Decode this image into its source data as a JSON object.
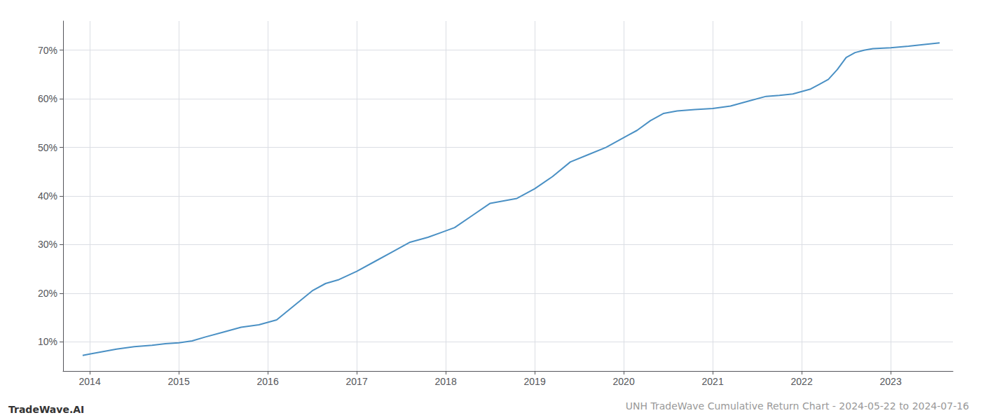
{
  "chart_data": {
    "type": "line",
    "title": "UNH TradeWave Cumulative Return Chart - 2024-05-22 to 2024-07-16",
    "annotations": [
      "TradeWave.AI"
    ],
    "color": "#4a90c4",
    "grid": true,
    "x": [
      2013.92,
      2014.0,
      2014.15,
      2014.3,
      2014.5,
      2014.7,
      2014.85,
      2015.0,
      2015.15,
      2015.3,
      2015.5,
      2015.7,
      2015.9,
      2016.1,
      2016.3,
      2016.5,
      2016.65,
      2016.8,
      2017.0,
      2017.2,
      2017.4,
      2017.6,
      2017.8,
      2017.95,
      2018.1,
      2018.3,
      2018.5,
      2018.65,
      2018.8,
      2019.0,
      2019.2,
      2019.4,
      2019.6,
      2019.8,
      2019.95,
      2020.05,
      2020.15,
      2020.3,
      2020.45,
      2020.6,
      2020.8,
      2021.0,
      2021.2,
      2021.4,
      2021.6,
      2021.75,
      2021.9,
      2022.0,
      2022.1,
      2022.2,
      2022.3,
      2022.4,
      2022.5,
      2022.6,
      2022.7,
      2022.8,
      2023.0,
      2023.2,
      2023.4,
      2023.55
    ],
    "values": [
      7.2,
      7.5,
      8.0,
      8.5,
      9.0,
      9.3,
      9.6,
      9.8,
      10.2,
      11.0,
      12.0,
      13.0,
      13.5,
      14.5,
      17.5,
      20.5,
      22.0,
      22.8,
      24.5,
      26.5,
      28.5,
      30.5,
      31.5,
      32.5,
      33.5,
      36.0,
      38.5,
      39.0,
      39.5,
      41.5,
      44.0,
      47.0,
      48.5,
      50.0,
      51.5,
      52.5,
      53.5,
      55.5,
      57.0,
      57.5,
      57.8,
      58.0,
      58.5,
      59.5,
      60.5,
      60.7,
      61.0,
      61.5,
      62.0,
      63.0,
      64.0,
      66.0,
      68.5,
      69.5,
      70.0,
      70.3,
      70.5,
      70.8,
      71.2,
      71.5
    ],
    "xlim": [
      2013.7,
      2023.7
    ],
    "ylim": [
      4,
      76
    ],
    "xticks": [
      2014,
      2015,
      2016,
      2017,
      2018,
      2019,
      2020,
      2021,
      2022,
      2023
    ],
    "yticks": [
      {
        "value": 10,
        "label": "10%"
      },
      {
        "value": 20,
        "label": "20%"
      },
      {
        "value": 30,
        "label": "30%"
      },
      {
        "value": 40,
        "label": "40%"
      },
      {
        "value": 50,
        "label": "50%"
      },
      {
        "value": 60,
        "label": "60%"
      },
      {
        "value": 70,
        "label": "70%"
      }
    ]
  }
}
